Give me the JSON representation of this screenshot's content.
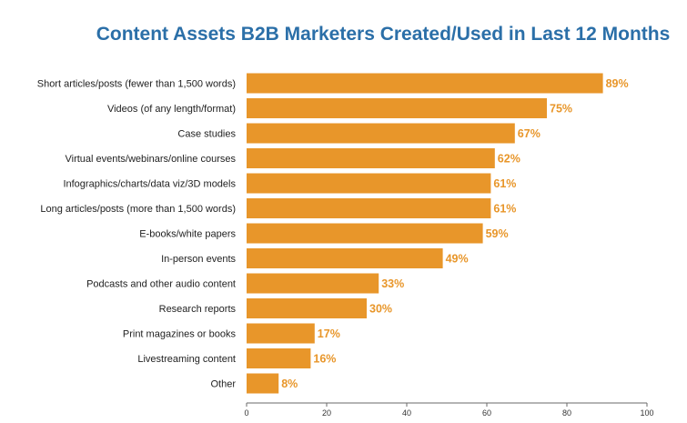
{
  "chart_data": {
    "type": "bar",
    "orientation": "horizontal",
    "title": "Content Assets B2B Marketers Created/Used in Last 12 Months",
    "categories": [
      "Short articles/posts (fewer than 1,500 words)",
      "Videos (of any length/format)",
      "Case studies",
      "Virtual events/webinars/online courses",
      "Infographics/charts/data viz/3D models",
      "Long articles/posts (more than 1,500 words)",
      "E-books/white papers",
      "In-person events",
      "Podcasts and other audio content",
      "Research reports",
      "Print magazines or books",
      "Livestreaming content",
      "Other"
    ],
    "values": [
      89,
      75,
      67,
      62,
      61,
      61,
      59,
      49,
      33,
      30,
      17,
      16,
      8
    ],
    "value_labels": [
      "89%",
      "75%",
      "67%",
      "62%",
      "61%",
      "61%",
      "59%",
      "49%",
      "33%",
      "30%",
      "17%",
      "16%",
      "8%"
    ],
    "xlim": [
      0,
      100
    ],
    "x_ticks": [
      0,
      20,
      40,
      60,
      80,
      100
    ],
    "xlabel": "",
    "ylabel": "",
    "grid": false,
    "bar_color": "#e8962a",
    "label_color": "#e8962a",
    "title_color": "#2b6fa8"
  }
}
